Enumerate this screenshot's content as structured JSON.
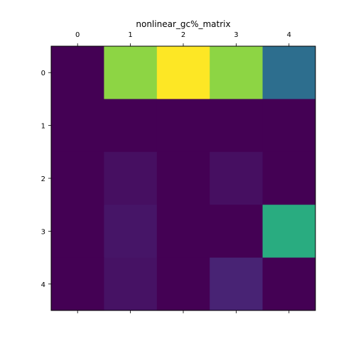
{
  "chart_data": {
    "type": "heatmap",
    "title": "nonlinear_gc%_matrix",
    "xlabel": "",
    "ylabel": "",
    "x_categories": [
      "0",
      "1",
      "2",
      "3",
      "4"
    ],
    "y_categories": [
      "0",
      "1",
      "2",
      "3",
      "4"
    ],
    "x_axis_position": "top",
    "colormap": "viridis",
    "grid": false,
    "values": [
      [
        0.0,
        0.83,
        1.0,
        0.83,
        0.36
      ],
      [
        0.0,
        0.0,
        0.0,
        0.0,
        0.0
      ],
      [
        0.0,
        0.04,
        0.0,
        0.04,
        0.0
      ],
      [
        0.0,
        0.06,
        0.0,
        0.0,
        0.62
      ],
      [
        0.0,
        0.05,
        0.0,
        0.1,
        0.0
      ]
    ]
  }
}
